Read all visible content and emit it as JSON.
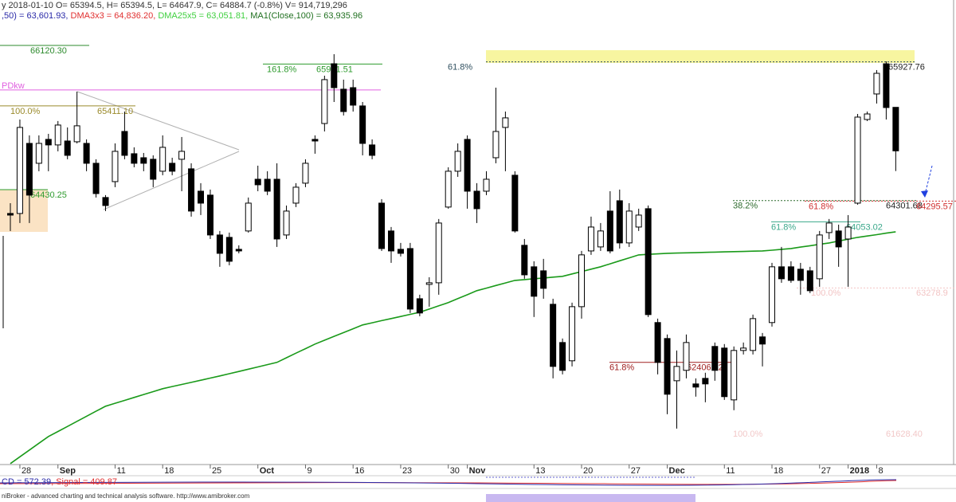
{
  "chart_data": {
    "type": "candlestick",
    "header": {
      "line1": "y 2018-01-10 O= 65394.5, H= 65394.5, L= 64647.9, C= 64884.7 (-0.8%) V= 914,719,296",
      "line2": [
        {
          "text": ",50) = 63,601.93, ",
          "color": "#2a2aa8"
        },
        {
          "text": "DMA3x3 = 64,836.20, ",
          "color": "#e03030"
        },
        {
          "text": "DMA25x5 = 63,051.81, ",
          "color": "#40d040"
        },
        {
          "text": "MA1(Close,100) = 63,935.96",
          "color": "#207020"
        }
      ]
    },
    "indicator_label": [
      {
        "text": "CD = 572.39",
        "color": "#2a2aa8"
      },
      {
        "text": ", Signal = 409.87",
        "color": "#e03030"
      }
    ],
    "footer": "niBroker - advanced charting and technical analysis software. http://www.amibroker.com",
    "categories": [
      null,
      "28",
      null,
      null,
      null,
      "Sep",
      null,
      null,
      null,
      null,
      null,
      "11",
      null,
      null,
      null,
      null,
      "18",
      null,
      null,
      null,
      null,
      "25",
      null,
      null,
      null,
      null,
      "Oct",
      null,
      null,
      null,
      null,
      "9",
      null,
      null,
      null,
      null,
      "16",
      null,
      null,
      null,
      null,
      "23",
      null,
      null,
      null,
      null,
      "30",
      null,
      "Nov",
      null,
      null,
      null,
      null,
      null,
      null,
      "13",
      null,
      null,
      null,
      null,
      "20",
      null,
      null,
      null,
      null,
      "27",
      null,
      null,
      null,
      "Dec",
      null,
      null,
      null,
      null,
      null,
      "11",
      null,
      null,
      null,
      null,
      "18",
      null,
      null,
      null,
      null,
      "27",
      null,
      null,
      "2018",
      null,
      null,
      "8",
      null,
      null
    ],
    "open": [
      64151,
      64151,
      64972,
      64739,
      65019,
      64954,
      65000,
      64991,
      64972,
      64739,
      64338,
      64524,
      65112,
      64851,
      64804,
      64786,
      64646,
      64739,
      64786,
      64674,
      64412,
      64366,
      63899,
      63871,
      63731,
      63946,
      64552,
      64552,
      64552,
      63899,
      64272,
      64506,
      65019,
      65205,
      65905,
      65607,
      65625,
      65411,
      64954,
      64272,
      63946,
      63731,
      63740,
      63152,
      63320,
      63339,
      64226,
      64646,
      65019,
      64412,
      64412,
      64804,
      65159,
      64599,
      63778,
      63526,
      63479,
      63087,
      62639,
      62425,
      63059,
      63712,
      63759,
      64179,
      64300,
      63806,
      63992,
      64207,
      62873,
      62686,
      62191,
      62313,
      62154,
      62219,
      62593,
      62574,
      61967,
      62546,
      62546,
      62705,
      62873,
      63526,
      63526,
      63498,
      63479,
      63386,
      63927,
      63946,
      63852,
      64272,
      65252,
      65551,
      65905,
      65394.5
    ],
    "high": [
      64272,
      65252,
      65066,
      65066,
      65084,
      65234,
      65159,
      65579,
      65019,
      64786,
      64366,
      64972,
      65345,
      64926,
      64860,
      64832,
      65066,
      64804,
      65047,
      64739,
      64506,
      64431,
      63946,
      63927,
      63778,
      64338,
      64711,
      64646,
      64739,
      64244,
      64506,
      64786,
      65066,
      65765,
      66017,
      65719,
      65719,
      65457,
      65019,
      64319,
      63992,
      63806,
      63806,
      63199,
      63404,
      64086,
      64692,
      64972,
      65066,
      64506,
      64646,
      65625,
      65345,
      64646,
      63852,
      63591,
      63619,
      63152,
      62686,
      63106,
      63712,
      64114,
      64039,
      64412,
      64431,
      64272,
      64207,
      64244,
      62919,
      62733,
      62546,
      62733,
      62219,
      62285,
      62639,
      62621,
      62593,
      62639,
      62966,
      62751,
      63572,
      63759,
      63591,
      63572,
      63526,
      63946,
      64086,
      64020,
      64132,
      65317,
      65345,
      65831,
      65933,
      65394.5
    ],
    "low": [
      63946,
      64039,
      64039,
      64646,
      64646,
      64879,
      64786,
      64972,
      64646,
      64338,
      64179,
      64459,
      64786,
      64692,
      64646,
      64459,
      64599,
      64599,
      64412,
      64114,
      64132,
      63852,
      63526,
      63544,
      63684,
      63927,
      64412,
      64366,
      63759,
      63852,
      64226,
      64459,
      64851,
      65112,
      65457,
      65299,
      65345,
      64832,
      64786,
      63712,
      63572,
      63647,
      62985,
      62947,
      63059,
      63199,
      64207,
      64580,
      64207,
      64039,
      64366,
      64739,
      64646,
      63927,
      63386,
      62938,
      63152,
      62219,
      62266,
      62359,
      62919,
      63666,
      63712,
      63684,
      63740,
      63759,
      63946,
      62938,
      62266,
      61799,
      61631,
      62219,
      62005,
      61939,
      62191,
      61967,
      61846,
      62499,
      62499,
      62359,
      62826,
      63339,
      63339,
      63199,
      63218,
      63292,
      63852,
      63526,
      63292,
      64254,
      65234,
      65439,
      65252,
      64647.9
    ],
    "close": [
      64132,
      65159,
      64366,
      64972,
      64954,
      65187,
      64832,
      65178,
      64739,
      64384,
      64244,
      64879,
      64832,
      64739,
      64739,
      64552,
      64926,
      64646,
      64879,
      64179,
      64272,
      63899,
      63684,
      63591,
      63712,
      64272,
      64487,
      64412,
      63852,
      64179,
      64459,
      64739,
      65000,
      65719,
      65625,
      65345,
      65420,
      64972,
      64832,
      63740,
      63712,
      63684,
      63031,
      62985,
      63339,
      64039,
      64646,
      64879,
      64412,
      64207,
      64552,
      65112,
      65271,
      63946,
      63432,
      63181,
      63274,
      62359,
      62313,
      63059,
      63666,
      63992,
      63946,
      63712,
      63806,
      64179,
      64132,
      62966,
      62406,
      62033,
      62359,
      62639,
      62117,
      62154,
      62313,
      62005,
      62546,
      62574,
      62919,
      62621,
      63526,
      63386,
      63367,
      63367,
      63246,
      63899,
      64039,
      63759,
      63992,
      65280,
      65317,
      65793,
      65392,
      64884.7
    ],
    "up_color": "#ffffff",
    "down_color": "#000000",
    "overlay": {
      "color": "#1a9a1a",
      "values": [
        61221,
        61300,
        61379,
        61459,
        61538,
        61597,
        61656,
        61715,
        61775,
        61834,
        61893,
        61927,
        61961,
        61995,
        62030,
        62064,
        62098,
        62123,
        62148,
        62172,
        62197,
        62222,
        62247,
        62274,
        62300,
        62327,
        62353,
        62380,
        62406,
        62460,
        62514,
        62567,
        62621,
        62666,
        62711,
        62755,
        62800,
        62845,
        62870,
        62895,
        62920,
        62944,
        62969,
        62994,
        63031,
        63069,
        63106,
        63153,
        63199,
        63246,
        63276,
        63307,
        63337,
        63367,
        63376,
        63386,
        63395,
        63405,
        63414,
        63442,
        63470,
        63498,
        63526,
        63561,
        63596,
        63631,
        63666,
        63672,
        63678,
        63684,
        63687,
        63690,
        63692,
        63695,
        63698,
        63701,
        63704,
        63706,
        63709,
        63712,
        63721,
        63731,
        63740,
        63757,
        63773,
        63790,
        63806,
        63828,
        63849,
        63871,
        63887,
        63903,
        63920,
        63935.96
      ]
    },
    "ylim": [
      61200,
      66652
    ],
    "pdkw": {
      "label": "PDkw",
      "value": 65598,
      "color": "#e060e0"
    },
    "levels": [
      {
        "value": 66120.3,
        "label": "66120.30",
        "color": "#2e8b2e"
      },
      {
        "pct": "161.8%",
        "value": 65901.51,
        "label": "65901.51",
        "color": "#2e9b2e"
      },
      {
        "pct": "100.0%",
        "value": 65411.1,
        "label": "65411.10",
        "color": "#9a8a2a"
      },
      {
        "value": 64430.25,
        "label": "64430.25",
        "color": "#2e9b2e"
      },
      {
        "pct": "61.8%",
        "value": 65927.76,
        "label": "65927.76",
        "color": "#2f4f5f"
      },
      {
        "pct": "38.2%",
        "value": 64301.68,
        "label": "64301.68",
        "color": "#2e6b2e"
      },
      {
        "pct": "61.8%",
        "value": 64295.57,
        "label": "64295.57",
        "color": "#d03030"
      },
      {
        "pct": "61.8%",
        "value": 64053.02,
        "label": "64053.02",
        "color": "#3aa88a"
      },
      {
        "pct": "100.0%",
        "value": 63278.9,
        "label": "63278.9",
        "color": "#f2c4c4"
      },
      {
        "pct": "61.8%",
        "value": 62406.12,
        "label": "62406.12",
        "color": "#a02020"
      },
      {
        "pct": "100.0%",
        "value": 61628.4,
        "label": "61628.40",
        "color": "#f2c8c8"
      }
    ]
  }
}
